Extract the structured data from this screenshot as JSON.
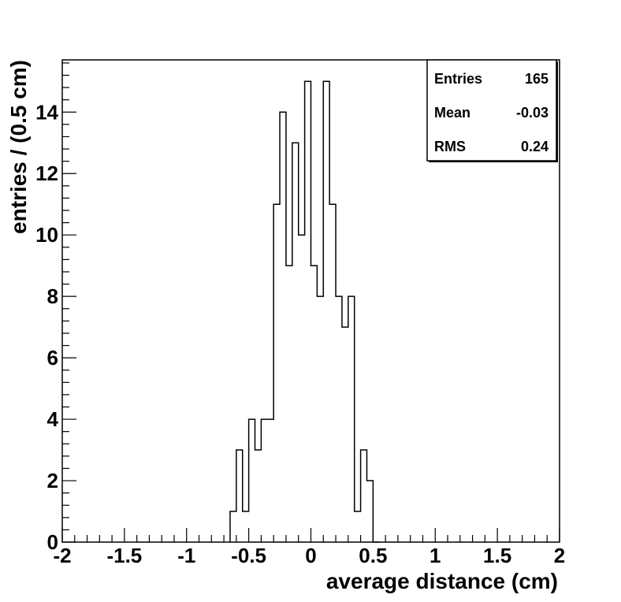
{
  "chart_data": {
    "type": "histogram",
    "xlabel": "average distance (cm)",
    "ylabel": "entries / (0.5 cm)",
    "xlim": [
      -2,
      2
    ],
    "ylim": [
      0,
      15.7
    ],
    "bin_width": 0.05,
    "x_ticks": [
      -2,
      -1.5,
      -1,
      -0.5,
      0,
      0.5,
      1,
      1.5,
      2
    ],
    "x_tick_labels": [
      "-2",
      "-1.5",
      "-1",
      "-0.5",
      "0",
      "0.5",
      "1",
      "1.5",
      "2"
    ],
    "y_ticks": [
      0,
      2,
      4,
      6,
      8,
      10,
      12,
      14
    ],
    "y_tick_labels": [
      "0",
      "2",
      "4",
      "6",
      "8",
      "10",
      "12",
      "14"
    ],
    "bins": [
      {
        "x": -0.65,
        "count": 1
      },
      {
        "x": -0.6,
        "count": 3
      },
      {
        "x": -0.55,
        "count": 1
      },
      {
        "x": -0.5,
        "count": 4
      },
      {
        "x": -0.45,
        "count": 3
      },
      {
        "x": -0.4,
        "count": 4
      },
      {
        "x": -0.35,
        "count": 4
      },
      {
        "x": -0.3,
        "count": 11
      },
      {
        "x": -0.25,
        "count": 14
      },
      {
        "x": -0.2,
        "count": 9
      },
      {
        "x": -0.15,
        "count": 13
      },
      {
        "x": -0.1,
        "count": 10
      },
      {
        "x": -0.05,
        "count": 15
      },
      {
        "x": 0.0,
        "count": 9
      },
      {
        "x": 0.05,
        "count": 8
      },
      {
        "x": 0.1,
        "count": 15
      },
      {
        "x": 0.15,
        "count": 11
      },
      {
        "x": 0.2,
        "count": 8
      },
      {
        "x": 0.25,
        "count": 7
      },
      {
        "x": 0.3,
        "count": 8
      },
      {
        "x": 0.35,
        "count": 1
      },
      {
        "x": 0.4,
        "count": 3
      },
      {
        "x": 0.45,
        "count": 2
      },
      {
        "x": 0.5,
        "count": 0
      }
    ],
    "legend_position": "top-right",
    "stats": [
      {
        "label": "Entries",
        "value": "165"
      },
      {
        "label": "Mean",
        "value": "-0.03"
      },
      {
        "label": "RMS",
        "value": "0.24"
      }
    ]
  }
}
